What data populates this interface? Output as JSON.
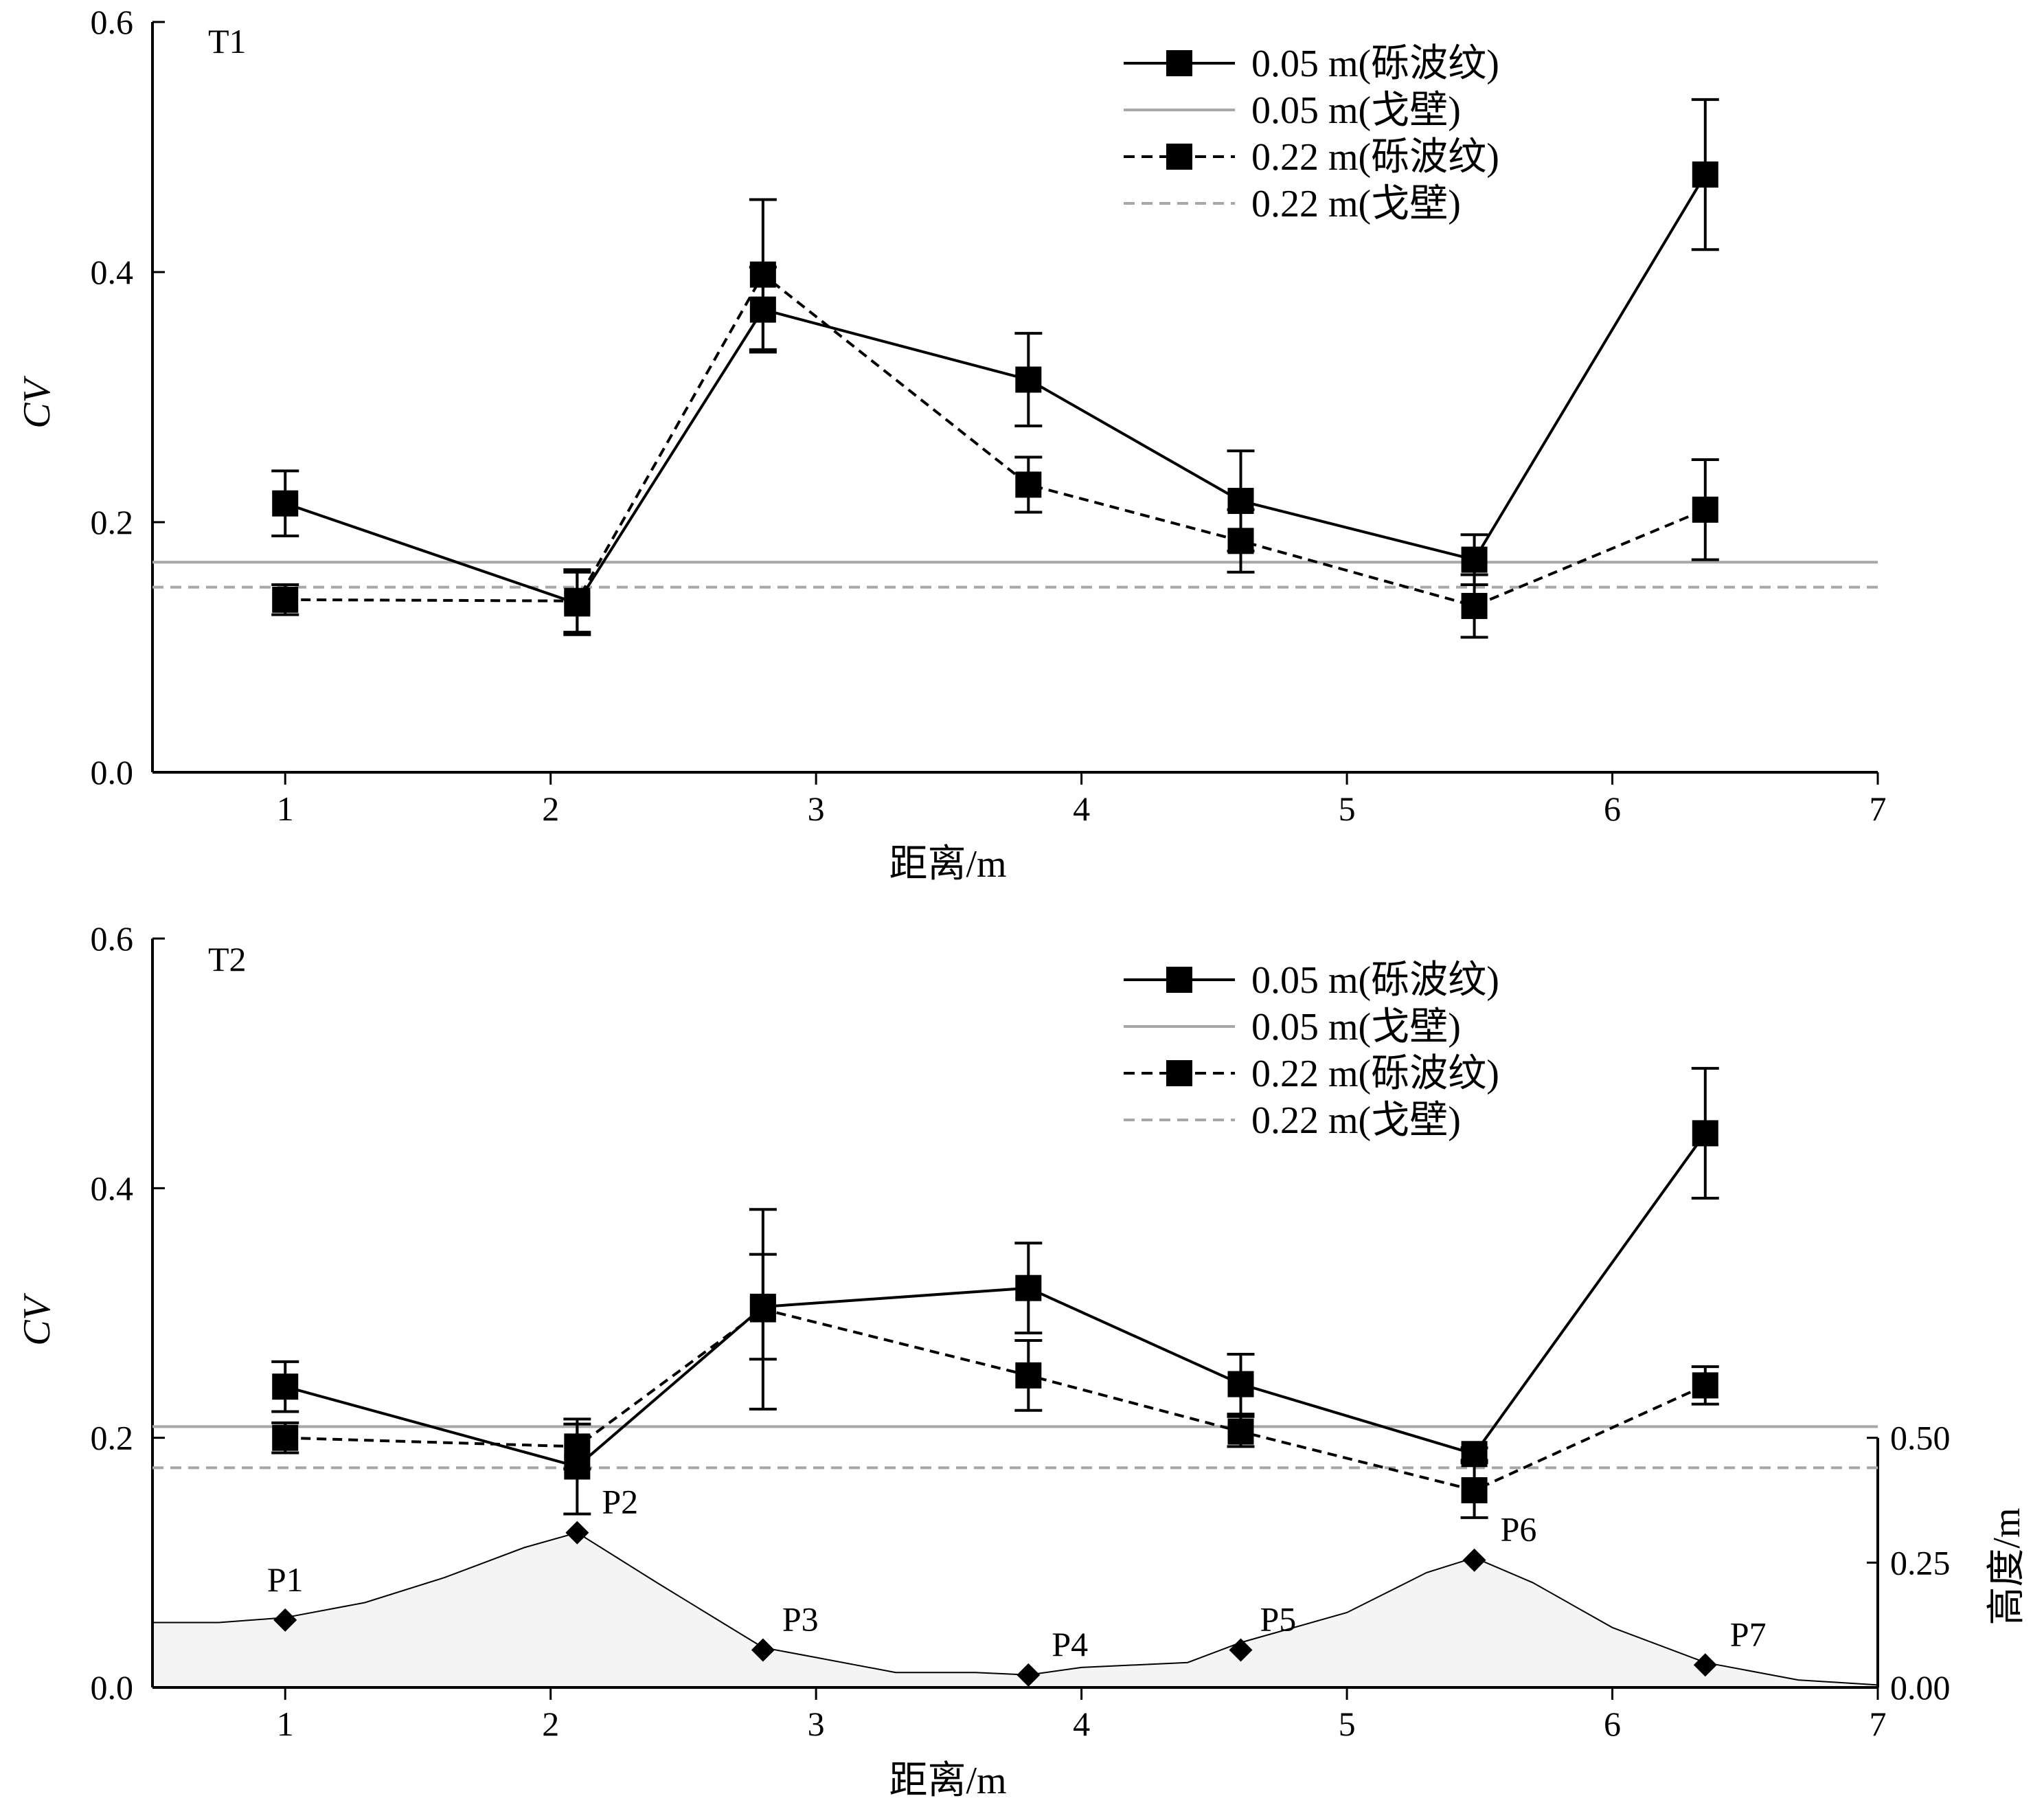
{
  "chart_data": [
    {
      "type": "line",
      "panel_label": "T1",
      "xlabel": "距离/m",
      "ylabel": "CV",
      "xlim": [
        0.5,
        7
      ],
      "ylim": [
        0,
        0.6
      ],
      "x_ticks": [
        1,
        2,
        3,
        4,
        5,
        6,
        7
      ],
      "x_tick_labels": [
        "1",
        "2",
        "3",
        "4",
        "5",
        "6",
        "7"
      ],
      "y_ticks": [
        0.0,
        0.2,
        0.4,
        0.6
      ],
      "y_tick_labels": [
        "0.0",
        "0.2",
        "0.4",
        "0.6"
      ],
      "grid": false,
      "legend_position": "top-right",
      "x": [
        1.0,
        2.1,
        2.8,
        3.8,
        4.6,
        5.48,
        6.35
      ],
      "series": [
        {
          "name": "0.05 m(砾波纹)",
          "style": "solid-black-square",
          "values": [
            0.215,
            0.135,
            0.37,
            0.314,
            0.217,
            0.17,
            0.478
          ],
          "errors": [
            0.026,
            0.025,
            0.034,
            0.037,
            0.04,
            0.02,
            0.06
          ]
        },
        {
          "name": "0.05 m(戈壁)",
          "style": "solid-gray-line",
          "level": 0.168
        },
        {
          "name": "0.22 m(砾波纹)",
          "style": "dashed-black-square",
          "values": [
            0.138,
            0.137,
            0.398,
            0.23,
            0.185,
            0.133,
            0.21
          ],
          "errors": [
            0.012,
            0.025,
            0.06,
            0.022,
            0.025,
            0.025,
            0.04
          ]
        },
        {
          "name": "0.22 m(戈壁)",
          "style": "dashed-gray-line",
          "level": 0.148
        }
      ]
    },
    {
      "type": "line",
      "panel_label": "T2",
      "xlabel": "距离/m",
      "ylabel": "CV",
      "y2label": "高度/m",
      "xlim": [
        0.5,
        7
      ],
      "ylim": [
        0,
        0.6
      ],
      "y2lim": [
        0,
        0.5
      ],
      "x_ticks": [
        1,
        2,
        3,
        4,
        5,
        6,
        7
      ],
      "x_tick_labels": [
        "1",
        "2",
        "3",
        "4",
        "5",
        "6",
        "7"
      ],
      "y_ticks": [
        0.0,
        0.2,
        0.4,
        0.6
      ],
      "y_tick_labels": [
        "0.0",
        "0.2",
        "0.4",
        "0.6"
      ],
      "y2_ticks": [
        0.0,
        0.25,
        0.5
      ],
      "y2_tick_labels": [
        "0.00",
        "0.25",
        "0.50"
      ],
      "grid": false,
      "legend_position": "top-right",
      "x": [
        1.0,
        2.1,
        2.8,
        3.8,
        4.6,
        5.48,
        6.35
      ],
      "series": [
        {
          "name": "0.05 m(砾波纹)",
          "style": "solid-black-square",
          "values": [
            0.241,
            0.177,
            0.305,
            0.32,
            0.243,
            0.187,
            0.444
          ],
          "errors": [
            0.02,
            0.038,
            0.042,
            0.036,
            0.024,
            0.005,
            0.052
          ]
        },
        {
          "name": "0.05 m(戈壁)",
          "style": "solid-gray-line",
          "level": 0.209
        },
        {
          "name": "0.22 m(砾波纹)",
          "style": "dashed-black-square",
          "values": [
            0.2,
            0.193,
            0.303,
            0.25,
            0.205,
            0.158,
            0.242
          ],
          "errors": [
            0.012,
            0.018,
            0.08,
            0.028,
            0.012,
            0.022,
            0.015
          ]
        },
        {
          "name": "0.22 m(戈壁)",
          "style": "dashed-gray-line",
          "level": 0.176
        }
      ],
      "terrain_profile": {
        "axis": "y2",
        "x": [
          0.5,
          0.75,
          1.0,
          1.3,
          1.6,
          1.9,
          2.1,
          2.4,
          2.8,
          3.0,
          3.3,
          3.6,
          3.8,
          4.0,
          4.4,
          4.6,
          5.0,
          5.3,
          5.48,
          5.7,
          6.0,
          6.35,
          6.7,
          7.0
        ],
        "y": [
          0.13,
          0.13,
          0.14,
          0.17,
          0.22,
          0.28,
          0.31,
          0.21,
          0.08,
          0.06,
          0.03,
          0.03,
          0.025,
          0.04,
          0.05,
          0.09,
          0.15,
          0.23,
          0.26,
          0.21,
          0.12,
          0.05,
          0.015,
          0.005
        ]
      },
      "peaks": [
        {
          "label": "P1",
          "x": 1.0,
          "height": 0.135
        },
        {
          "label": "P2",
          "x": 2.1,
          "height": 0.31
        },
        {
          "label": "P3",
          "x": 2.8,
          "height": 0.075
        },
        {
          "label": "P4",
          "x": 3.8,
          "height": 0.025
        },
        {
          "label": "P5",
          "x": 4.6,
          "height": 0.075
        },
        {
          "label": "P6",
          "x": 5.48,
          "height": 0.255
        },
        {
          "label": "P7",
          "x": 6.35,
          "height": 0.045
        }
      ]
    }
  ],
  "colors": {
    "series_black": "#000000",
    "gobi_gray": "#a8a8a8",
    "terrain_fill": "#f4f4f4"
  }
}
